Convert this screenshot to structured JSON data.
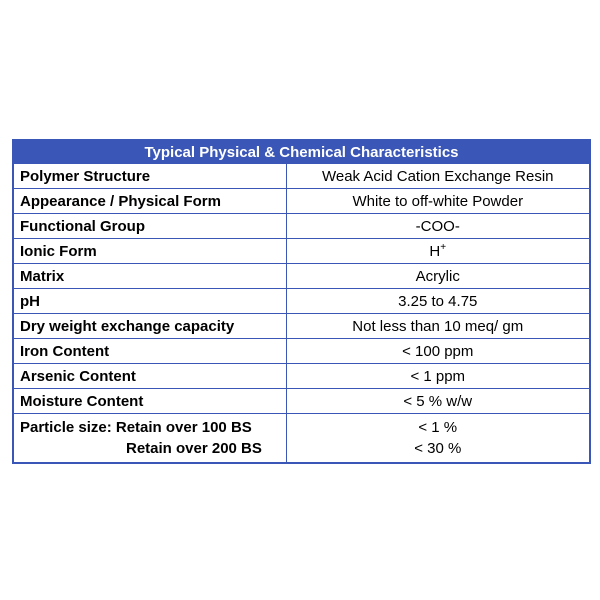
{
  "table": {
    "title": "Typical Physical & Chemical Characteristics",
    "rows": [
      {
        "label": "Polymer Structure",
        "value": "Weak Acid Cation Exchange Resin"
      },
      {
        "label": "Appearance / Physical Form",
        "value": "White to off-white Powder"
      },
      {
        "label": "Functional Group",
        "value": "-COO-"
      },
      {
        "label": "Ionic Form",
        "value": "H",
        "value_sup": "+"
      },
      {
        "label": "Matrix",
        "value": "Acrylic"
      },
      {
        "label": "pH",
        "value": "3.25 to 4.75"
      },
      {
        "label": "Dry weight exchange capacity",
        "value": "Not less than 10 meq/ gm"
      },
      {
        "label": "Iron Content",
        "value": "< 100 ppm"
      },
      {
        "label": "Arsenic Content",
        "value": "< 1 ppm"
      },
      {
        "label": "Moisture Content",
        "value": "< 5 % w/w"
      }
    ],
    "particle_size": {
      "label_1": "Particle size: Retain over 100 BS",
      "label_2": "Retain over 200 BS",
      "value_1": "< 1 %",
      "value_2": "< 30 %"
    }
  }
}
